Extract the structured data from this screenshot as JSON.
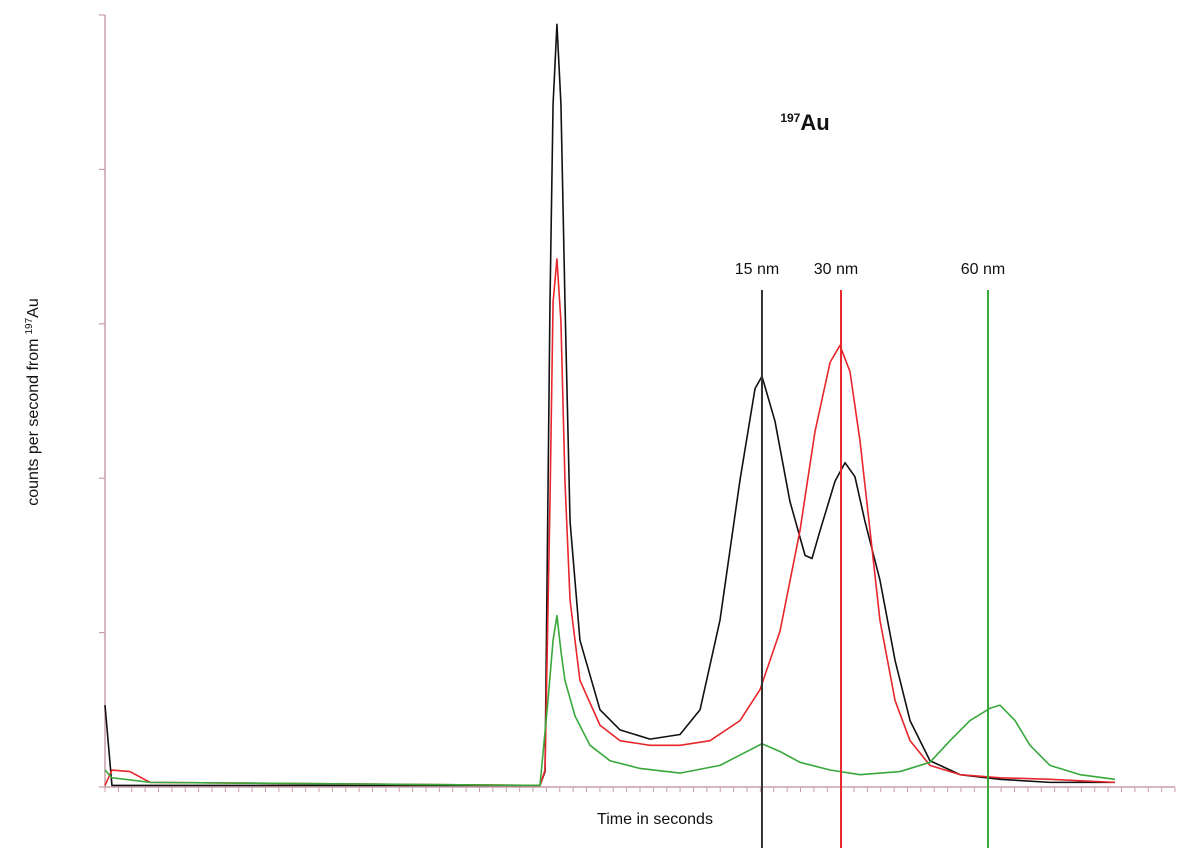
{
  "chart_data": {
    "type": "line",
    "title_sup": "197",
    "title": "Au",
    "xlabel": "Time in seconds",
    "ylabel": "counts per second from",
    "ylabel_sup": "197",
    "ylabel_unit": "Au",
    "xlim": [
      0,
      80
    ],
    "xticks": [
      0,
      1,
      2,
      3,
      4,
      5,
      6,
      7,
      8,
      9,
      10,
      11,
      12,
      13,
      14,
      15,
      16,
      17,
      18,
      19,
      20,
      21,
      22,
      23,
      24,
      25,
      26,
      27,
      28,
      29,
      30,
      31,
      32,
      33,
      34,
      35,
      36,
      37,
      38,
      39,
      40,
      41,
      42,
      43,
      44,
      45,
      46,
      47,
      48,
      49,
      50,
      51,
      52,
      53,
      54,
      55,
      56,
      57,
      58,
      59,
      60,
      61,
      62,
      63,
      64,
      65,
      66,
      67,
      68,
      69,
      70,
      71,
      72,
      73,
      74,
      75,
      76,
      77,
      78,
      79,
      80
    ],
    "ylim": [
      0,
      5
    ],
    "yticks": [
      0,
      1,
      2,
      3,
      4,
      5
    ],
    "axis_color": "#c9a0a8",
    "series": [
      {
        "color": "#111111",
        "x": [
          0,
          0.52,
          7.1,
          32.52,
          32.9,
          33.27,
          33.5,
          33.79,
          34.09,
          34.39,
          34.77,
          35.51,
          37.01,
          38.5,
          40.75,
          42.99,
          44.49,
          45.98,
          47.48,
          48.6,
          49.12,
          50.09,
          51.21,
          52.34,
          52.86,
          53.46,
          54.58,
          55.33,
          56.07,
          56.82,
          57.94,
          59.07,
          60.19,
          61.68,
          63.93,
          66.92,
          70.65,
          75.51
        ],
        "values": [
          0.53,
          0.01,
          0.01,
          0.01,
          0.1,
          3.14,
          4.42,
          4.94,
          4.42,
          3.14,
          1.72,
          0.95,
          0.5,
          0.37,
          0.31,
          0.34,
          0.5,
          1.08,
          1.99,
          2.58,
          2.66,
          2.37,
          1.85,
          1.5,
          1.48,
          1.66,
          1.98,
          2.1,
          2.01,
          1.72,
          1.34,
          0.82,
          0.43,
          0.17,
          0.08,
          0.05,
          0.03,
          0.03
        ]
      },
      {
        "color": "#e8262b",
        "x": [
          0,
          0.52,
          1.87,
          3.36,
          32.52,
          32.9,
          33.27,
          33.5,
          33.79,
          34.09,
          34.39,
          34.77,
          35.51,
          37.01,
          38.5,
          40.75,
          42.99,
          45.23,
          47.48,
          48.97,
          50.47,
          51.96,
          53.08,
          54.21,
          54.95,
          55.7,
          56.45,
          57.2,
          57.94,
          59.07,
          60.19,
          61.68,
          63.93,
          66.92,
          70.65,
          75.51
        ],
        "values": [
          0.01,
          0.11,
          0.1,
          0.03,
          0.01,
          0.11,
          1.85,
          3.14,
          3.42,
          3.01,
          1.98,
          1.21,
          0.69,
          0.4,
          0.3,
          0.27,
          0.27,
          0.3,
          0.43,
          0.63,
          1.01,
          1.66,
          2.3,
          2.75,
          2.86,
          2.69,
          2.24,
          1.66,
          1.08,
          0.56,
          0.3,
          0.14,
          0.08,
          0.06,
          0.05,
          0.03
        ]
      },
      {
        "color": "#38a83a",
        "x": [
          0,
          0.52,
          3.36,
          32.52,
          33.12,
          33.5,
          33.79,
          34.09,
          34.39,
          35.14,
          36.26,
          37.76,
          40,
          42.99,
          45.98,
          48.22,
          49.12,
          50.47,
          51.96,
          54.21,
          56.45,
          59.44,
          61.68,
          63.18,
          64.67,
          66.17,
          66.92,
          68.04,
          69.16,
          70.65,
          72.9,
          75.51
        ],
        "values": [
          0.11,
          0.06,
          0.03,
          0.01,
          0.56,
          0.95,
          1.11,
          0.88,
          0.69,
          0.46,
          0.27,
          0.17,
          0.12,
          0.09,
          0.14,
          0.24,
          0.28,
          0.23,
          0.16,
          0.11,
          0.08,
          0.1,
          0.16,
          0.3,
          0.43,
          0.51,
          0.53,
          0.43,
          0.27,
          0.14,
          0.08,
          0.05
        ]
      }
    ],
    "markers": [
      {
        "label": "15 nm",
        "x": 49.12,
        "color": "#333333"
      },
      {
        "label": "30 nm",
        "x": 55.03,
        "color": "#e8262b"
      },
      {
        "label": "60 nm",
        "x": 66.02,
        "color": "#38a83a"
      }
    ]
  }
}
